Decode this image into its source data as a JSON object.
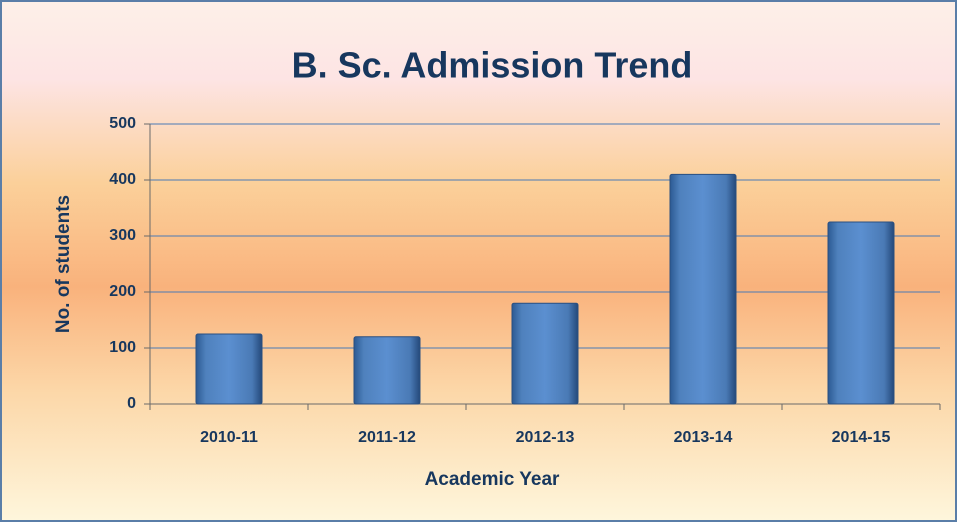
{
  "chart_data": {
    "type": "bar",
    "title": "B. Sc. Admission Trend",
    "x_label": "Academic Year",
    "y_label": "No. of students",
    "categories": [
      "2010-11",
      "2011-12",
      "2012-13",
      "2013-14",
      "2014-15"
    ],
    "values": [
      125,
      120,
      180,
      410,
      325
    ],
    "color": "#4f81bd",
    "ylim": [
      0,
      500
    ],
    "yticks": [
      0,
      100,
      200,
      300,
      400,
      500
    ],
    "grid": true
  }
}
